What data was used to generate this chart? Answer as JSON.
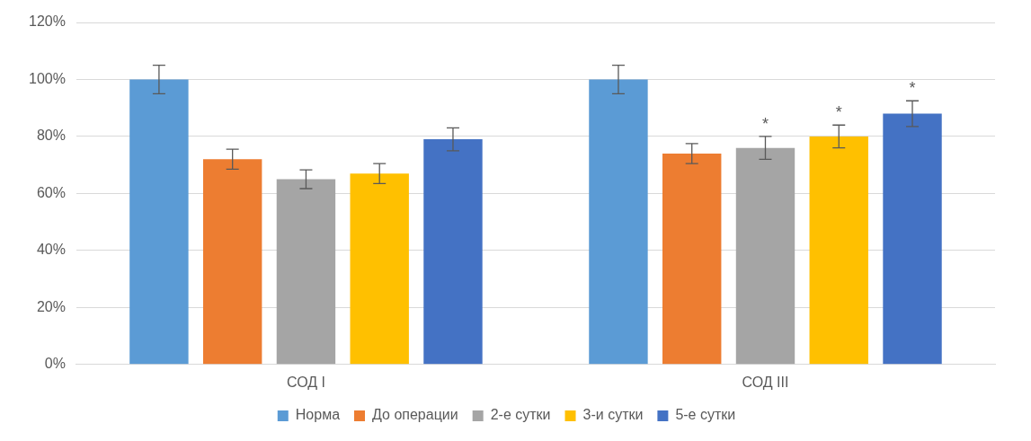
{
  "chart_data": {
    "type": "bar",
    "categories": [
      "СОД I",
      "СОД III"
    ],
    "series": [
      {
        "name": "Норма",
        "color": "#5b9bd5",
        "values": [
          100,
          100
        ],
        "errors": [
          5,
          5
        ]
      },
      {
        "name": "До операции",
        "color": "#ed7d31",
        "values": [
          72,
          74
        ],
        "errors": [
          3.5,
          3.5
        ]
      },
      {
        "name": "2-е сутки",
        "color": "#a5a5a5",
        "values": [
          65,
          76
        ],
        "errors": [
          3.3,
          4
        ],
        "value_labels": [
          null,
          "*"
        ]
      },
      {
        "name": "3-и сутки",
        "color": "#ffc000",
        "values": [
          67,
          80
        ],
        "errors": [
          3.5,
          4
        ],
        "value_labels": [
          null,
          "*"
        ]
      },
      {
        "name": "5-е сутки",
        "color": "#4472c4",
        "values": [
          79,
          88
        ],
        "errors": [
          4,
          4.5
        ],
        "value_labels": [
          null,
          "*"
        ]
      }
    ],
    "ylim": [
      0,
      120
    ],
    "yticks": [
      {
        "value": 0,
        "label": "0%"
      },
      {
        "value": 20,
        "label": "20%"
      },
      {
        "value": 40,
        "label": "40%"
      },
      {
        "value": 60,
        "label": "60%"
      },
      {
        "value": 80,
        "label": "80%"
      },
      {
        "value": 100,
        "label": "100%"
      },
      {
        "value": 120,
        "label": "120%"
      }
    ],
    "grid": "y",
    "legend": "bottom"
  }
}
